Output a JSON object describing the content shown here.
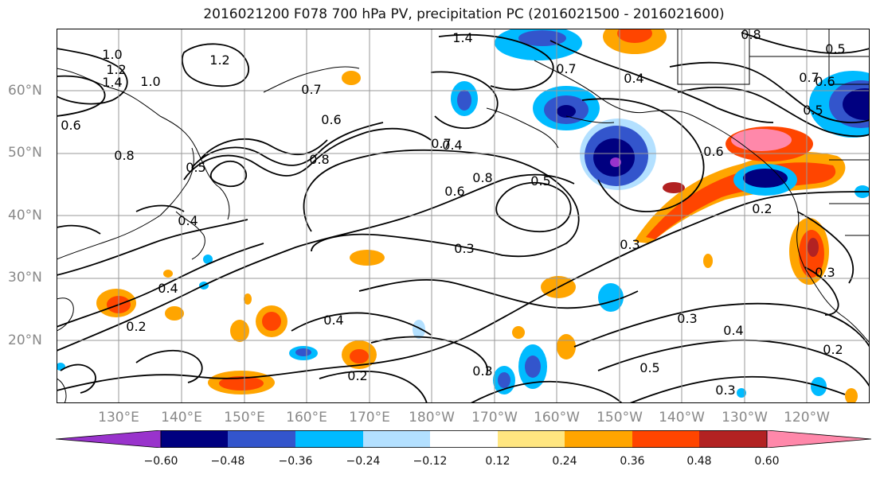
{
  "title": "2016021200 F078 700 hPa PV, precipitation PC (2016021500 - 2016021600)",
  "lat_labels": [
    "60°N",
    "50°N",
    "40°N",
    "30°N",
    "20°N"
  ],
  "lon_labels": [
    "130°E",
    "140°E",
    "150°E",
    "160°E",
    "170°E",
    "180°W",
    "170°W",
    "160°W",
    "150°W",
    "140°W",
    "130°W",
    "120°W"
  ],
  "colorbar": {
    "colors": [
      "#9933cc",
      "#000080",
      "#3355cc",
      "#00bbff",
      "#b3e0ff",
      "#ffffff",
      "#ffe680",
      "#ffa500",
      "#ff4500",
      "#b22222",
      "#ff88aa"
    ],
    "tick_labels": [
      "−0.60",
      "−0.48",
      "−0.36",
      "−0.24",
      "−0.12",
      "0.12",
      "0.24",
      "0.36",
      "0.48",
      "0.60"
    ]
  },
  "contour_labels": [
    "1.4",
    "0.8",
    "0.5",
    "1.0",
    "1.2",
    "1.2",
    "1.4",
    "1.0",
    "0.7",
    "0.7",
    "0.6",
    "0.4",
    "0.6",
    "0.8",
    "0.8",
    "0.5",
    "0.6",
    "0.4",
    "0.8",
    "0.5",
    "0.6",
    "0.7",
    "0.5",
    "0.6",
    "0.2",
    "0.4",
    "0.3",
    "0.3",
    "0.4",
    "0.2",
    "0.4",
    "0.3",
    "0.2",
    "0.4",
    "0.3",
    "0.5",
    "0.3",
    "0.2",
    "0.3",
    "0.7"
  ]
}
